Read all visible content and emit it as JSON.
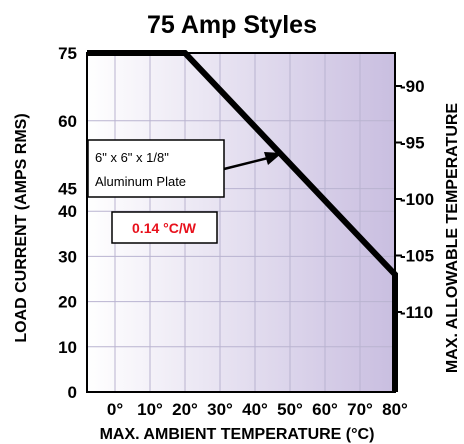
{
  "chart_data": {
    "type": "line",
    "title": "75 Amp Styles",
    "xlabel": "MAX. AMBIENT TEMPERATURE (°C)",
    "ylabel": "LOAD CURRENT (AMPS RMS)",
    "y2label": "MAX. ALLOWABLE TEMPERATURE",
    "xlim": [
      -8,
      80
    ],
    "x_ticks": [
      0,
      10,
      20,
      30,
      40,
      50,
      60,
      70,
      80
    ],
    "x_tick_labels": [
      "0°",
      "10°",
      "20°",
      "30°",
      "40°",
      "50°",
      "60°",
      "70°",
      "80°"
    ],
    "ylim": [
      0,
      75
    ],
    "y_ticks": [
      0,
      10,
      20,
      30,
      40,
      45,
      60,
      75
    ],
    "y_tick_labels": [
      "0",
      "10",
      "20",
      "30",
      "40",
      "45",
      "60",
      "75"
    ],
    "y2_ticks": [
      -90,
      -95,
      -100,
      -105,
      -110
    ],
    "y2_tick_labels": [
      "-90",
      "-95",
      "-100",
      "-105",
      "-110"
    ],
    "grid": true,
    "series": [
      {
        "x": [
          -8,
          20,
          80,
          80
        ],
        "y": [
          75,
          75,
          26,
          0
        ]
      }
    ],
    "annotations": {
      "plate_label_line1": "6\" x 6\" x 1/8\"",
      "plate_label_line2": "Aluminum Plate",
      "thermal_rating": "0.14 °C/W"
    },
    "colors": {
      "shade_start": "#ffffff",
      "shade_end": "#c9bee0",
      "grid": "#b9b3d0",
      "rating_text": "#e8111c",
      "line": "#000000"
    }
  }
}
